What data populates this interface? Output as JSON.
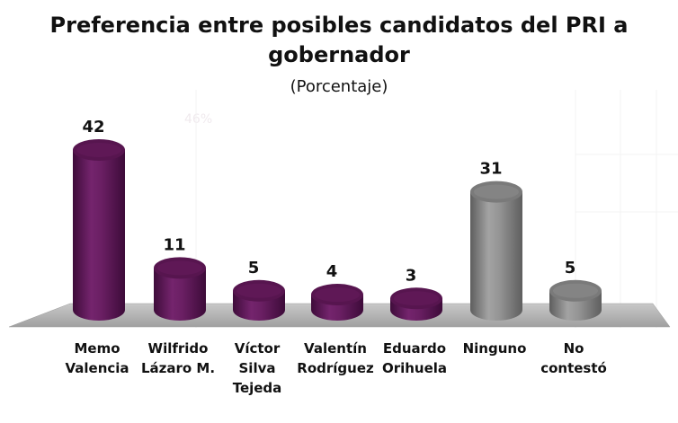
{
  "chart_data": {
    "type": "bar",
    "title": "Preferencia entre posibles candidatos del PRI a gobernador",
    "subtitle": "(Porcentaje)",
    "categories": [
      [
        "Memo",
        "Valencia"
      ],
      [
        "Wilfrido",
        "Lázaro M."
      ],
      [
        "Víctor",
        "Silva",
        "Tejeda"
      ],
      [
        "Valentín",
        "Rodríguez"
      ],
      [
        "Eduardo",
        "Orihuela"
      ],
      [
        "Ninguno"
      ],
      [
        "No",
        "contestó"
      ]
    ],
    "values": [
      42,
      11,
      5,
      4,
      3,
      31,
      5
    ],
    "bar_colors": [
      "#5f1859",
      "#5f1859",
      "#5f1859",
      "#5f1859",
      "#5f1859",
      "#8d8d8d",
      "#8d8d8d"
    ],
    "ylim": [
      0,
      42
    ],
    "grid": false,
    "watermark": "46%"
  }
}
